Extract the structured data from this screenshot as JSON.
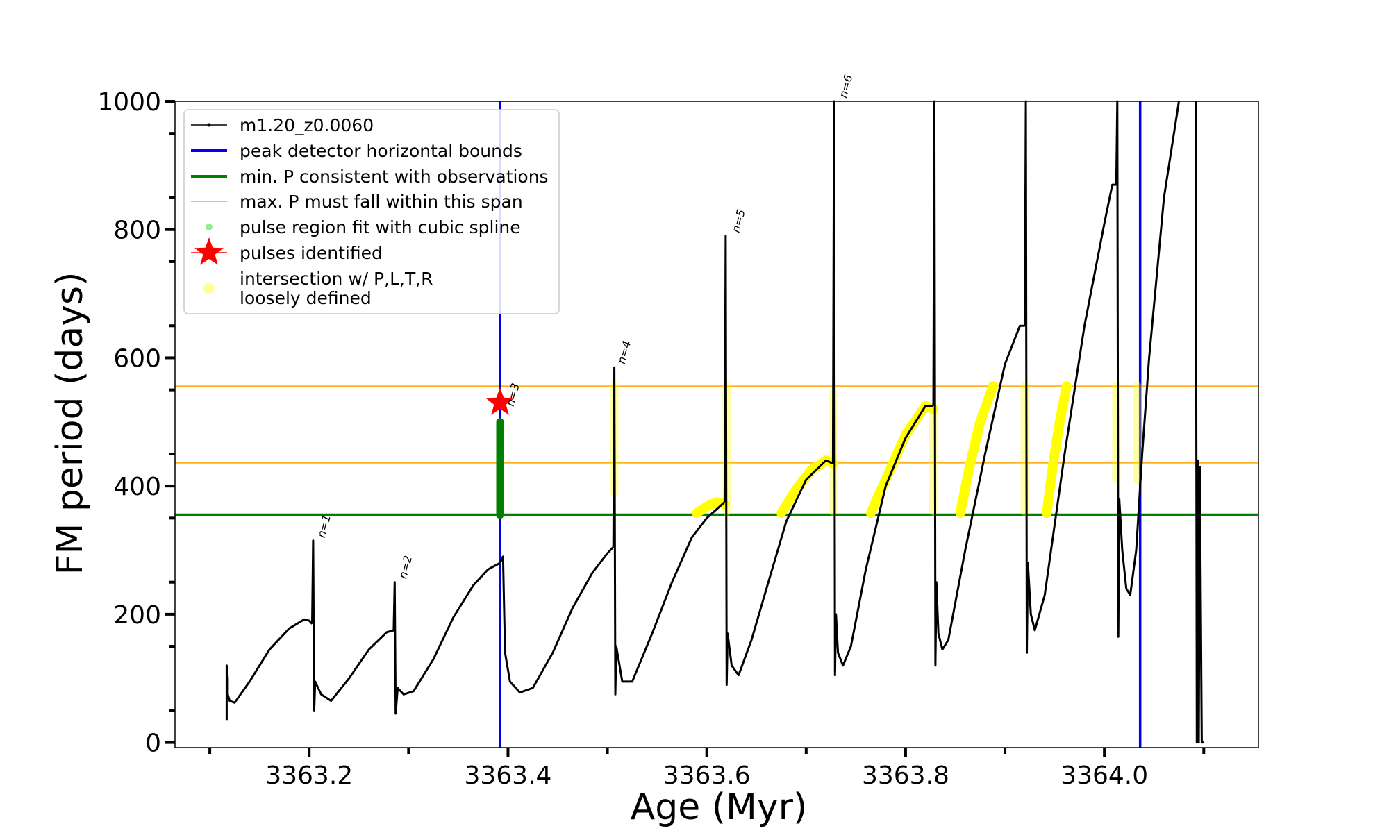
{
  "chart_data": {
    "type": "line",
    "xlabel": "Age (Myr)",
    "ylabel": "FM period (days)",
    "xlim": [
      3363.065,
      3364.155
    ],
    "ylim": [
      -8,
      1000
    ],
    "x_ticks": [
      3363.2,
      3363.4,
      3363.6,
      3363.8,
      3364.0
    ],
    "x_tick_labels": [
      "3363.2",
      "3363.4",
      "3363.6",
      "3363.8",
      "3364.0"
    ],
    "y_ticks": [
      0,
      200,
      400,
      600,
      800,
      1000
    ],
    "y_tick_labels": [
      "0",
      "200",
      "400",
      "600",
      "800",
      "1000"
    ],
    "grid": false,
    "legend_position": "top-left",
    "legend": [
      {
        "label": "m1.20_z0.0060",
        "symbol": "line-dot",
        "color": "#000000"
      },
      {
        "label": "peak detector horizontal bounds",
        "symbol": "line",
        "color": "#0000ee"
      },
      {
        "label": "min. P consistent with observations",
        "symbol": "line",
        "color": "#007f00"
      },
      {
        "label": "max. P must fall within this span",
        "symbol": "thin-line",
        "color": "#ffa500"
      },
      {
        "label": "pulse region fit with cubic spline",
        "symbol": "dot",
        "color": "#90ee90"
      },
      {
        "label": "pulses identified",
        "symbol": "star",
        "color": "#ff0000"
      },
      {
        "label": "intersection w/ P,L,T,R",
        "label2": "loosely defined",
        "symbol": "circle",
        "color": "#ffff99"
      }
    ],
    "vertical_lines": {
      "name": "peak detector horizontal bounds",
      "x": [
        3363.392,
        3364.036
      ],
      "color": "#0000ee"
    },
    "min_period_line": {
      "name": "min. P consistent with observations",
      "y": 355,
      "color": "#007f00"
    },
    "max_period_span": {
      "name": "max. P must fall within this span",
      "y": [
        436,
        556
      ],
      "color": "#ffa500"
    },
    "pulse_labels": [
      {
        "text": "n=1",
        "x": 3363.205,
        "y": 314
      },
      {
        "text": "n=2",
        "x": 3363.287,
        "y": 250
      },
      {
        "text": "n=3",
        "x": 3363.395,
        "y": 519
      },
      {
        "text": "n=4",
        "x": 3363.507,
        "y": 585
      },
      {
        "text": "n=5",
        "x": 3363.622,
        "y": 790
      },
      {
        "text": "n=6",
        "x": 3363.73,
        "y": 1000
      }
    ],
    "identified_pulse": {
      "name": "pulses identified",
      "x": 3363.392,
      "y": 530,
      "color": "#ff0000"
    },
    "spline_region": {
      "name": "pulse region fit with cubic spline",
      "x": 3363.392,
      "y": [
        355,
        500
      ],
      "color": "#007f00"
    },
    "series": [
      {
        "name": "m1.20_z0.0060",
        "color": "#000000",
        "segments": [
          {
            "x": [
              3363.117,
              3363.117,
              3363.118,
              3363.118,
              3363.12,
              3363.125,
              3363.14,
              3363.16,
              3363.18,
              3363.195,
              3363.2,
              3363.203
            ],
            "y": [
              35,
              120,
              100,
              75,
              65,
              62,
              95,
              145,
              178,
              192,
              190,
              185
            ]
          },
          {
            "x": [
              3363.203,
              3363.204,
              3363.205,
              3363.206,
              3363.212,
              3363.222,
              3363.24,
              3363.26,
              3363.278,
              3363.285
            ],
            "y": [
              185,
              315,
              50,
              95,
              75,
              65,
              100,
              145,
              172,
              175
            ]
          },
          {
            "x": [
              3363.285,
              3363.286,
              3363.287,
              3363.289,
              3363.295,
              3363.305,
              3363.325,
              3363.345,
              3363.365,
              3363.38,
              3363.392
            ],
            "y": [
              175,
              250,
              45,
              85,
              75,
              80,
              130,
              195,
              245,
              270,
              280
            ]
          },
          {
            "x": [
              3363.392,
              3363.395,
              3363.397,
              3363.402,
              3363.412,
              3363.425,
              3363.445,
              3363.465,
              3363.485,
              3363.5,
              3363.506
            ],
            "y": [
              280,
              290,
              140,
              95,
              78,
              85,
              140,
              210,
              265,
              295,
              305
            ]
          },
          {
            "x": [
              3363.506,
              3363.507,
              3363.508,
              3363.509,
              3363.515,
              3363.525,
              3363.545,
              3363.565,
              3363.585,
              3363.6,
              3363.618
            ],
            "y": [
              305,
              585,
              75,
              150,
              95,
              95,
              170,
              250,
              320,
              350,
              375
            ]
          },
          {
            "x": [
              3363.618,
              3363.619,
              3363.62,
              3363.621,
              3363.625,
              3363.632,
              3363.645,
              3363.66,
              3363.68,
              3363.7,
              3363.72,
              3363.727
            ],
            "y": [
              375,
              790,
              90,
              170,
              120,
              105,
              160,
              240,
              345,
              410,
              440,
              435
            ]
          },
          {
            "x": [
              3363.727,
              3363.728,
              3363.729,
              3363.73,
              3363.732,
              3363.737,
              3363.745,
              3363.76,
              3363.78,
              3363.8,
              3363.82,
              3363.828
            ],
            "y": [
              435,
              1000,
              105,
              200,
              140,
              120,
              150,
              270,
              400,
              475,
              525,
              525
            ]
          },
          {
            "x": [
              3363.828,
              3363.829,
              3363.83,
              3363.831,
              3363.833,
              3363.837,
              3363.843,
              3363.86,
              3363.88,
              3363.9,
              3363.915,
              3363.92
            ],
            "y": [
              525,
              1000,
              120,
              250,
              170,
              145,
              160,
              300,
              450,
              590,
              650,
              650
            ]
          },
          {
            "x": [
              3363.92,
              3363.921,
              3363.922,
              3363.923,
              3363.926,
              3363.93,
              3363.94,
              3363.96,
              3363.98,
              3364.0,
              3364.008,
              3364.012
            ],
            "y": [
              650,
              1000,
              140,
              280,
              200,
              175,
              230,
              450,
              650,
              810,
              870,
              870
            ]
          },
          {
            "x": [
              3364.012,
              3364.013,
              3364.014,
              3364.015,
              3364.018,
              3364.022,
              3364.026,
              3364.032,
              3364.038,
              3364.045,
              3364.06,
              3364.075
            ],
            "y": [
              870,
              1000,
              165,
              380,
              300,
              240,
              230,
              300,
              450,
              600,
              850,
              1000
            ]
          },
          {
            "x": [
              3364.092,
              3364.093,
              3364.094,
              3364.095,
              3364.096,
              3364.098,
              3364.1
            ],
            "y": [
              1000,
              0,
              440,
              0,
              430,
              0,
              0
            ]
          }
        ]
      }
    ],
    "intersection_regions": {
      "name": "intersection w/ P,L,T,R",
      "color": "#ffff00",
      "vertical": [
        {
          "x": 3363.507,
          "y": [
            390,
            556
          ]
        },
        {
          "x": 3363.62,
          "y": [
            360,
            556
          ]
        },
        {
          "x": 3363.727,
          "y": [
            360,
            545
          ]
        },
        {
          "x": 3363.828,
          "y": [
            360,
            520
          ]
        },
        {
          "x": 3363.92,
          "y": [
            360,
            556
          ]
        },
        {
          "x": 3364.012,
          "y": [
            410,
            556
          ]
        },
        {
          "x": 3364.033,
          "y": [
            410,
            556
          ]
        }
      ],
      "arcs": [
        {
          "x": [
            3363.59,
            3363.6,
            3363.61,
            3363.617
          ],
          "y": [
            358,
            368,
            375,
            372
          ]
        },
        {
          "x": [
            3363.675,
            3363.69,
            3363.705,
            3363.72,
            3363.727
          ],
          "y": [
            358,
            395,
            425,
            440,
            435
          ]
        },
        {
          "x": [
            3363.765,
            3363.78,
            3363.8,
            3363.82,
            3363.828
          ],
          "y": [
            358,
            410,
            480,
            525,
            520
          ]
        },
        {
          "x": [
            3363.855,
            3363.865,
            3363.875,
            3363.888
          ],
          "y": [
            358,
            435,
            500,
            556
          ]
        },
        {
          "x": [
            3363.942,
            3363.948,
            3363.955,
            3363.962
          ],
          "y": [
            358,
            430,
            500,
            556
          ]
        }
      ]
    }
  }
}
